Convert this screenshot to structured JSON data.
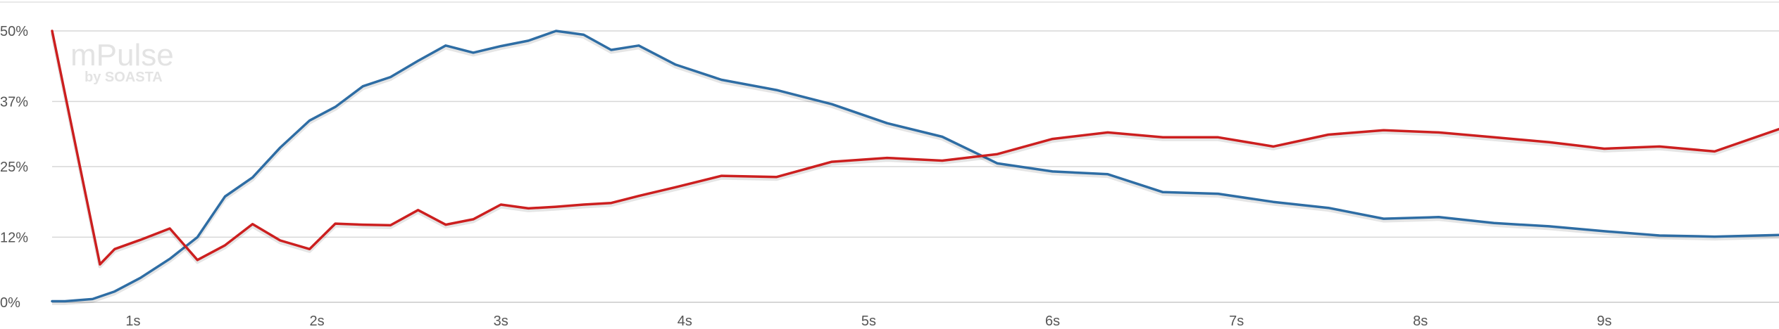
{
  "watermark": {
    "main": "mPulse",
    "sub": "by SOASTA"
  },
  "chart_data": {
    "type": "line",
    "y_ticks": [
      0,
      12,
      25,
      37,
      50
    ],
    "y_tick_labels": [
      "0%",
      "12%",
      "25%",
      "37%",
      "50%"
    ],
    "x_ticks": [
      1,
      2,
      3,
      4,
      5,
      6,
      7,
      8,
      9
    ],
    "x_tick_labels": [
      "1s",
      "2s",
      "3s",
      "4s",
      "5s",
      "6s",
      "7s",
      "8s",
      "9s"
    ],
    "xlim": [
      0.56,
      9.95
    ],
    "ylim": [
      0,
      50
    ],
    "grid": true,
    "series": [
      {
        "color": "#2e6da4",
        "x": [
          0.56,
          0.63,
          0.78,
          0.9,
          1.04,
          1.2,
          1.35,
          1.5,
          1.65,
          1.8,
          1.96,
          2.1,
          2.25,
          2.4,
          2.55,
          2.7,
          2.85,
          3.0,
          3.15,
          3.3,
          3.45,
          3.6,
          3.75,
          3.95,
          4.2,
          4.5,
          4.8,
          5.1,
          5.4,
          5.7,
          6.0,
          6.3,
          6.6,
          6.9,
          7.2,
          7.5,
          7.8,
          8.1,
          8.4,
          8.7,
          9.0,
          9.3,
          9.6,
          9.95
        ],
        "values": [
          0.2,
          0.2,
          0.6,
          2.0,
          4.5,
          8.0,
          12.0,
          19.5,
          23.0,
          28.5,
          33.5,
          36.0,
          39.8,
          41.5,
          44.5,
          47.3,
          46.0,
          47.2,
          48.2,
          50.0,
          49.3,
          46.5,
          47.3,
          43.8,
          41.0,
          39.1,
          36.5,
          33.0,
          30.5,
          25.6,
          24.1,
          23.6,
          20.3,
          20.0,
          18.5,
          17.4,
          15.4,
          15.7,
          14.6,
          14.0,
          13.1,
          12.3,
          12.1,
          12.4
        ]
      },
      {
        "color": "#cc1f1f",
        "x": [
          0.56,
          0.82,
          0.9,
          1.04,
          1.2,
          1.35,
          1.5,
          1.65,
          1.8,
          1.96,
          2.1,
          2.25,
          2.4,
          2.55,
          2.7,
          2.85,
          3.0,
          3.15,
          3.3,
          3.45,
          3.6,
          3.75,
          3.95,
          4.2,
          4.5,
          4.8,
          5.1,
          5.4,
          5.7,
          6.0,
          6.3,
          6.6,
          6.9,
          7.2,
          7.5,
          7.8,
          8.1,
          8.4,
          8.7,
          9.0,
          9.3,
          9.6,
          9.95
        ],
        "values": [
          50.0,
          7.0,
          9.8,
          11.5,
          13.6,
          7.8,
          10.5,
          14.4,
          11.4,
          9.8,
          14.5,
          14.3,
          14.2,
          17.0,
          14.3,
          15.3,
          18.0,
          17.3,
          17.6,
          18.0,
          18.3,
          19.6,
          21.2,
          23.3,
          23.1,
          25.9,
          26.6,
          26.1,
          27.3,
          30.1,
          31.3,
          30.4,
          30.4,
          28.7,
          30.9,
          31.7,
          31.3,
          30.4,
          29.5,
          28.3,
          28.7,
          27.8,
          31.9
        ]
      }
    ]
  }
}
